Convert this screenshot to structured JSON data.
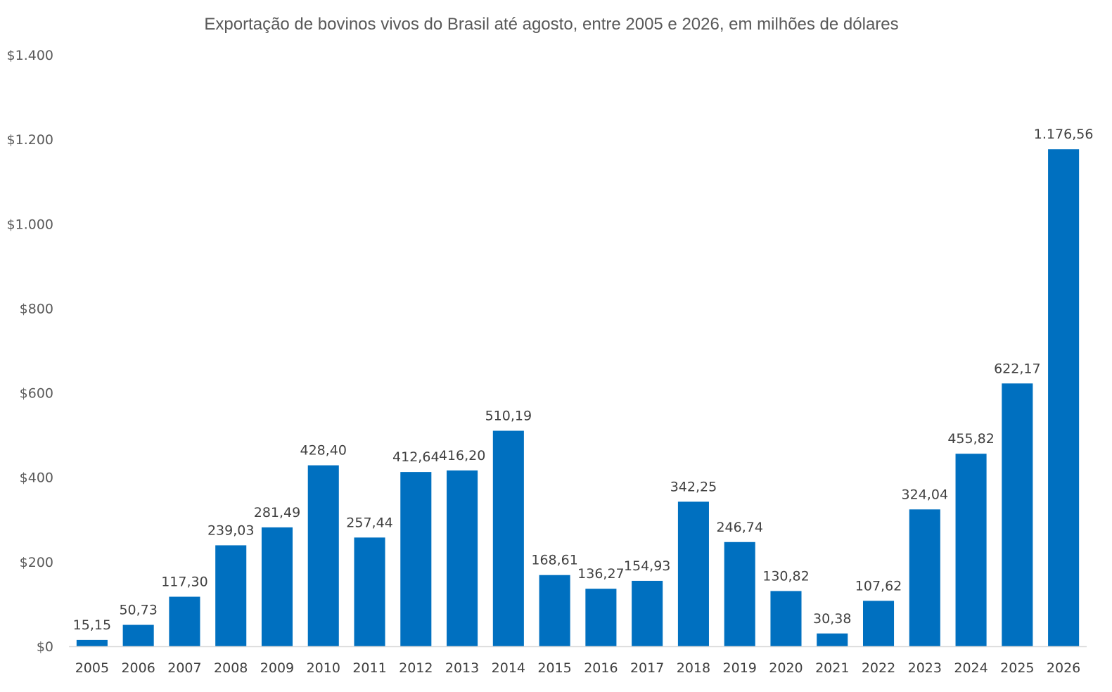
{
  "chart_data": {
    "type": "bar",
    "title": "Exportação de bovinos vivos do Brasil até agosto, entre 2005 e 2026, em milhões de dólares",
    "xlabel": "",
    "ylabel": "",
    "categories": [
      "2005",
      "2006",
      "2007",
      "2008",
      "2009",
      "2010",
      "2011",
      "2012",
      "2013",
      "2014",
      "2015",
      "2016",
      "2017",
      "2018",
      "2019",
      "2020",
      "2021",
      "2022",
      "2023",
      "2024",
      "2025",
      "2026"
    ],
    "values": [
      15.15,
      50.73,
      117.3,
      239.03,
      281.49,
      428.4,
      257.44,
      412.64,
      416.2,
      510.19,
      168.61,
      136.27,
      154.93,
      342.25,
      246.74,
      130.82,
      30.38,
      107.62,
      324.04,
      455.82,
      622.17,
      1176.56
    ],
    "data_labels": [
      "15,15",
      "50,73",
      "117,30",
      "239,03",
      "281,49",
      "428,40",
      "257,44",
      "412,64",
      "416,20",
      "510,19",
      "168,61",
      "136,27",
      "154,93",
      "342,25",
      "246,74",
      "130,82",
      "30,38",
      "107,62",
      "324,04",
      "455,82",
      "622,17",
      "1.176,56"
    ],
    "ylim": [
      0,
      1400
    ],
    "yticks": [
      0,
      200,
      400,
      600,
      800,
      1000,
      1200,
      1400
    ],
    "ytick_labels": [
      "$0",
      "$200",
      "$400",
      "$600",
      "$800",
      "$1.000",
      "$1.200",
      "$1.400"
    ],
    "grid": false,
    "legend": "none",
    "bar_color": "#0070C0",
    "axis_color": "#D9D9D9"
  }
}
